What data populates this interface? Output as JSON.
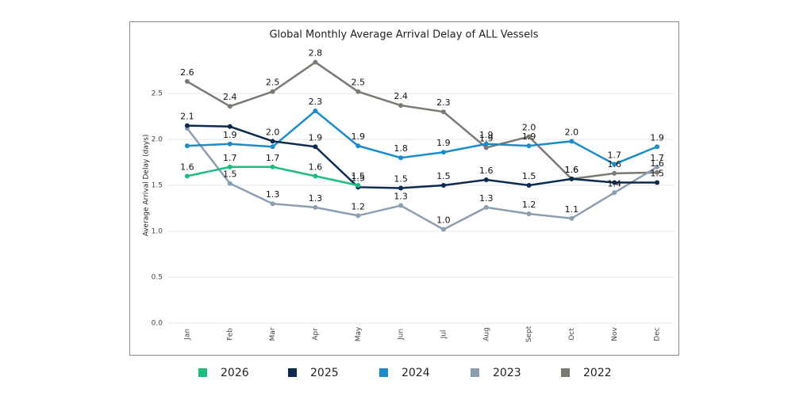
{
  "chart_data": {
    "type": "line",
    "title": "Global Monthly Average Arrival Delay of ALL Vessels",
    "y_label": "Average Arrival Delay (days)",
    "categories": [
      "Jan",
      "Feb",
      "Mar",
      "Apr",
      "May",
      "Jun",
      "Jul",
      "Aug",
      "Sept",
      "Oct",
      "Nov",
      "Dec"
    ],
    "ylim": [
      0,
      3
    ],
    "yticks": [
      {
        "value": 0,
        "label": "0.0"
      },
      0.5,
      {
        "value": 1,
        "label": "1.0"
      },
      1.5,
      {
        "value": 2,
        "label": "2.0"
      },
      2.5
    ],
    "grid": true,
    "series": [
      {
        "name": "2026",
        "color": "#1bbd7e",
        "values": [
          1.6,
          1.7,
          1.7,
          1.6,
          1.5,
          null,
          null,
          null,
          null,
          null,
          null,
          null
        ],
        "value_labels": [
          "1.6",
          "1.7",
          "1.7",
          "1.6",
          "1.5",
          null,
          null,
          null,
          null,
          null,
          null,
          null
        ]
      },
      {
        "name": "2025",
        "color": "#0b2a4f",
        "values": [
          2.15,
          2.14,
          1.98,
          1.92,
          1.48,
          1.47,
          1.5,
          1.56,
          1.5,
          1.57,
          1.53,
          1.53
        ],
        "value_labels": [
          "2.1",
          null,
          "2.0",
          "1.9",
          "1.5",
          "1.5",
          "1.5",
          "1.6",
          "1.5",
          "1.6",
          null,
          "1.5"
        ]
      },
      {
        "name": "2024",
        "color": "#1a8ccc",
        "values": [
          1.93,
          1.95,
          1.92,
          2.31,
          1.93,
          1.8,
          1.86,
          1.95,
          1.93,
          1.98,
          1.73,
          1.92
        ],
        "value_labels": [
          null,
          "1.9",
          null,
          "2.3",
          "1.9",
          "1.8",
          "1.9",
          "1.9",
          "1.9",
          "2.0",
          "1.7",
          "1.9"
        ]
      },
      {
        "name": "2023",
        "color": "#8a9eb0",
        "values": [
          2.12,
          1.52,
          1.3,
          1.26,
          1.17,
          1.28,
          1.02,
          1.26,
          1.19,
          1.14,
          1.42,
          1.7
        ],
        "value_labels": [
          null,
          "1.5",
          "1.3",
          "1.3",
          "1.2",
          "1.3",
          "1.0",
          "1.3",
          "1.2",
          "1.1",
          "1.4",
          "1.7"
        ]
      },
      {
        "name": "2022",
        "color": "#7a7a72",
        "values": [
          2.63,
          2.36,
          2.52,
          2.84,
          2.52,
          2.37,
          2.3,
          1.91,
          2.03,
          1.57,
          1.63,
          1.64
        ],
        "value_labels": [
          "2.6",
          "2.4",
          "2.5",
          "2.8",
          "2.5",
          "2.4",
          "2.3",
          "1.9",
          "2.0",
          "1.6",
          "1.6",
          "1.6"
        ]
      }
    ]
  }
}
